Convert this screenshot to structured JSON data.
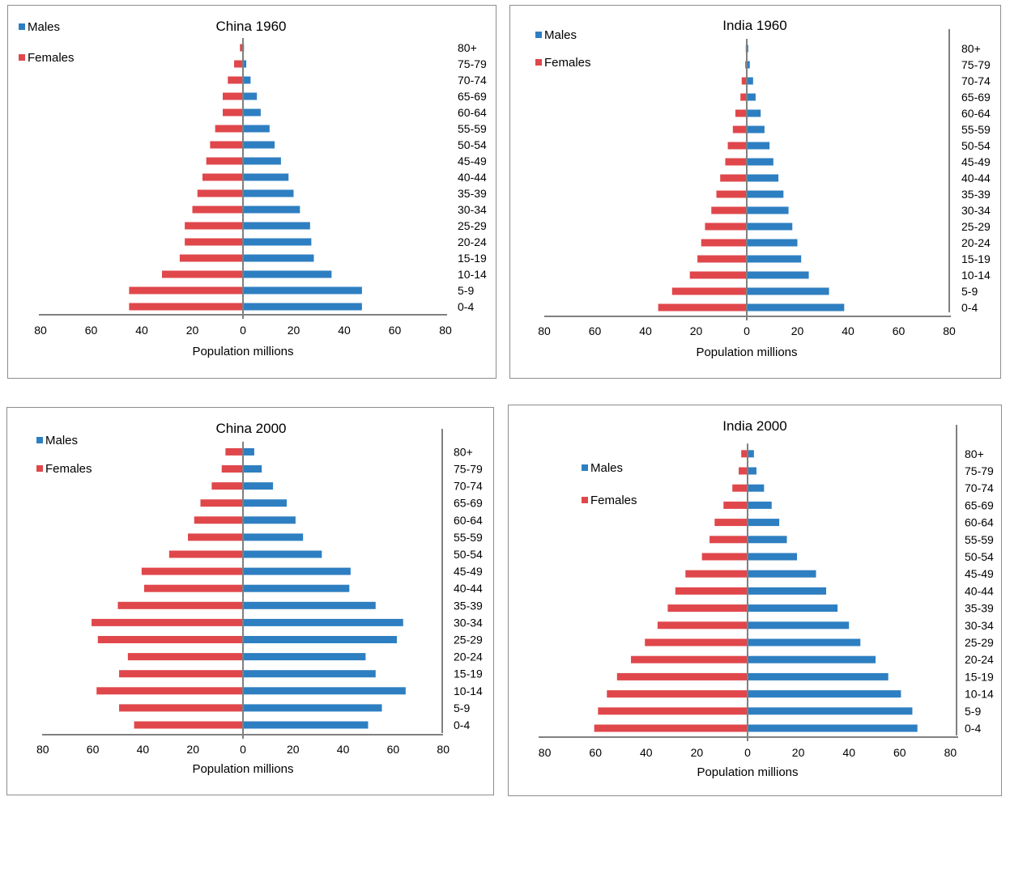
{
  "colors": {
    "males": "#2e7fc1",
    "females": "#e0474b",
    "axis": "#808080",
    "frame": "#8c8c8c"
  },
  "chart_data": [
    {
      "type": "bar",
      "title": "China 1960",
      "xlabel": "Population millions",
      "xlim": [
        -80,
        80
      ],
      "xticks": [
        "80",
        "60",
        "40",
        "20",
        "0",
        "20",
        "40",
        "60",
        "80"
      ],
      "categories": [
        "0-4",
        "5-9",
        "10-14",
        "15-19",
        "20-24",
        "25-29",
        "30-34",
        "35-39",
        "40-44",
        "45-49",
        "50-54",
        "55-59",
        "60-64",
        "65-69",
        "70-74",
        "75-79",
        "80+"
      ],
      "series": [
        {
          "name": "Males",
          "values": [
            47,
            47,
            35,
            28,
            27,
            26.5,
            22.5,
            20,
            18,
            15,
            12.5,
            10.5,
            7,
            5.5,
            3,
            1.3,
            0.4
          ]
        },
        {
          "name": "Females",
          "values": [
            -45,
            -45,
            -32,
            -25,
            -23,
            -23,
            -20,
            -18,
            -16,
            -14.5,
            -13,
            -11,
            -8,
            -8,
            -6,
            -3.5,
            -1.2
          ]
        }
      ],
      "legend": "top-left"
    },
    {
      "type": "bar",
      "title": "India 1960",
      "xlabel": "Population millions",
      "xlim": [
        -80,
        80
      ],
      "xticks": [
        "80",
        "60",
        "40",
        "20",
        "0",
        "20",
        "40",
        "60",
        "80"
      ],
      "categories": [
        "0-4",
        "5-9",
        "10-14",
        "15-19",
        "20-24",
        "25-29",
        "30-34",
        "35-39",
        "40-44",
        "45-49",
        "50-54",
        "55-59",
        "60-64",
        "65-69",
        "70-74",
        "75-79",
        "80+"
      ],
      "series": [
        {
          "name": "Males",
          "values": [
            38.5,
            32.5,
            24.5,
            21.5,
            20,
            18,
            16.5,
            14.5,
            12.5,
            10.5,
            9,
            7,
            5.5,
            3.5,
            2.5,
            1.2,
            0.6
          ]
        },
        {
          "name": "Females",
          "values": [
            -35,
            -29.5,
            -22.5,
            -19.5,
            -18,
            -16.5,
            -14,
            -12,
            -10.5,
            -8.5,
            -7.5,
            -5.5,
            -4.5,
            -2.5,
            -2,
            -0.6,
            -0.4
          ]
        }
      ],
      "legend": "top-left"
    },
    {
      "type": "bar",
      "title": "China 2000",
      "xlabel": "Population millions",
      "xlim": [
        -80,
        80
      ],
      "xticks": [
        "80",
        "60",
        "40",
        "20",
        "0",
        "20",
        "40",
        "60",
        "80"
      ],
      "categories": [
        "0-4",
        "5-9",
        "10-14",
        "15-19",
        "20-24",
        "25-29",
        "30-34",
        "35-39",
        "40-44",
        "45-49",
        "50-54",
        "55-59",
        "60-64",
        "65-69",
        "70-74",
        "75-79",
        "80+"
      ],
      "series": [
        {
          "name": "Males",
          "values": [
            50,
            55.5,
            65,
            53,
            49,
            61.5,
            64,
            53,
            42.5,
            43,
            31.5,
            24,
            21,
            17.5,
            12,
            7.5,
            4.5
          ]
        },
        {
          "name": "Females",
          "values": [
            -43.5,
            -49.5,
            -58.5,
            -49.5,
            -46,
            -58,
            -60.5,
            -50,
            -39.5,
            -40.5,
            -29.5,
            -22,
            -19.5,
            -17,
            -12.5,
            -8.5,
            -7
          ]
        }
      ],
      "legend": "top-left"
    },
    {
      "type": "bar",
      "title": "India 2000",
      "xlabel": "Population millions",
      "xlim": [
        -80,
        80
      ],
      "xticks": [
        "80",
        "60",
        "40",
        "20",
        "0",
        "20",
        "40",
        "60",
        "80"
      ],
      "categories": [
        "0-4",
        "5-9",
        "10-14",
        "15-19",
        "20-24",
        "25-29",
        "30-34",
        "35-39",
        "40-44",
        "45-49",
        "50-54",
        "55-59",
        "60-64",
        "65-69",
        "70-74",
        "75-79",
        "80+"
      ],
      "series": [
        {
          "name": "Males",
          "values": [
            67,
            65,
            60.5,
            55.5,
            50.5,
            44.5,
            40,
            35.5,
            31,
            27,
            19.5,
            15.5,
            12.5,
            9.5,
            6.5,
            3.5,
            2.5
          ]
        },
        {
          "name": "Females",
          "values": [
            -60.5,
            -59,
            -55.5,
            -51.5,
            -46,
            -40.5,
            -35.5,
            -31.5,
            -28.5,
            -24.5,
            -18,
            -15,
            -13,
            -9.5,
            -6,
            -3.5,
            -2.5
          ]
        }
      ],
      "legend": "left, below title"
    }
  ]
}
